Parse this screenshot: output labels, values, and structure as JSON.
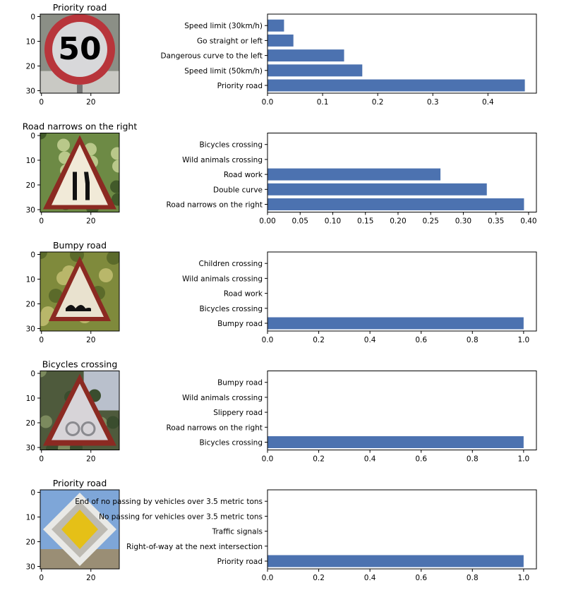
{
  "chart_data": [
    {
      "type": "bar",
      "image_title": "Priority road",
      "image_ticks": [
        "0",
        "10",
        "20",
        "30"
      ],
      "image_xticks": [
        "0",
        "20"
      ],
      "image_icon": "speed-limit-50-sign",
      "categories": [
        "Priority road",
        "Speed limit (50km/h)",
        "Dangerous curve to the left",
        "Go straight or left",
        "Speed limit (30km/h)"
      ],
      "values": [
        0.467,
        0.172,
        0.139,
        0.047,
        0.03
      ],
      "xlim": [
        0,
        0.488
      ],
      "xticks": [
        "0.0",
        "0.1",
        "0.2",
        "0.3",
        "0.4"
      ]
    },
    {
      "type": "bar",
      "image_title": "Road narrows on the right",
      "image_ticks": [
        "0",
        "10",
        "20",
        "30"
      ],
      "image_xticks": [
        "0",
        "20"
      ],
      "image_icon": "road-narrows-right-sign",
      "categories": [
        "Road narrows on the right",
        "Double curve",
        "Road work",
        "Wild animals crossing",
        "Bicycles crossing"
      ],
      "values": [
        0.393,
        0.336,
        0.265,
        0.0,
        0.0
      ],
      "xlim": [
        0,
        0.412
      ],
      "xticks": [
        "0.00",
        "0.05",
        "0.10",
        "0.15",
        "0.20",
        "0.25",
        "0.30",
        "0.35",
        "0.40"
      ]
    },
    {
      "type": "bar",
      "image_title": "Bumpy road",
      "image_ticks": [
        "0",
        "10",
        "20",
        "30"
      ],
      "image_xticks": [
        "0",
        "20"
      ],
      "image_icon": "bumpy-road-sign",
      "categories": [
        "Bumpy road",
        "Bicycles crossing",
        "Road work",
        "Wild animals crossing",
        "Children crossing"
      ],
      "values": [
        1.0,
        0.0,
        0.0,
        0.0,
        0.0
      ],
      "xlim": [
        0,
        1.05
      ],
      "xticks": [
        "0.0",
        "0.2",
        "0.4",
        "0.6",
        "0.8",
        "1.0"
      ]
    },
    {
      "type": "bar",
      "image_title": "Bicycles crossing",
      "image_ticks": [
        "0",
        "10",
        "20",
        "30"
      ],
      "image_xticks": [
        "0",
        "20"
      ],
      "image_icon": "bicycles-crossing-sign",
      "categories": [
        "Bicycles crossing",
        "Road narrows on the right",
        "Slippery road",
        "Wild animals crossing",
        "Bumpy road"
      ],
      "values": [
        1.0,
        0.0,
        0.0,
        0.0,
        0.0
      ],
      "xlim": [
        0,
        1.05
      ],
      "xticks": [
        "0.0",
        "0.2",
        "0.4",
        "0.6",
        "0.8",
        "1.0"
      ]
    },
    {
      "type": "bar",
      "image_title": "Priority road",
      "image_ticks": [
        "0",
        "10",
        "20",
        "30"
      ],
      "image_xticks": [
        "0",
        "20"
      ],
      "image_icon": "priority-road-sign",
      "categories": [
        "Priority road",
        "Right-of-way at the next intersection",
        "Traffic signals",
        "No passing for vehicles over 3.5 metric tons",
        "End of no passing by vehicles over 3.5 metric tons"
      ],
      "values": [
        1.0,
        0.0,
        0.0,
        0.0,
        0.0
      ],
      "xlim": [
        0,
        1.05
      ],
      "xticks": [
        "0.0",
        "0.2",
        "0.4",
        "0.6",
        "0.8",
        "1.0"
      ]
    }
  ],
  "colors": {
    "bar": "#4c72b0",
    "axis": "#000000"
  }
}
